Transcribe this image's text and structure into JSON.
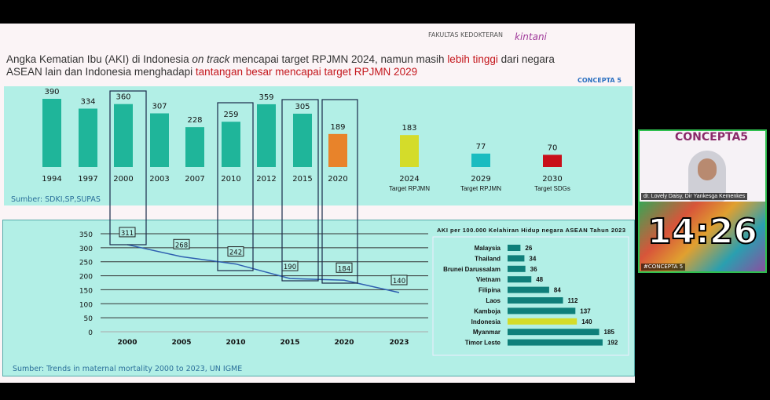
{
  "slide": {
    "title_parts": [
      "Angka Kematian Ibu (AKI) di Indonesia ",
      "on track",
      " mencapai target RPJMN 2024, namun masih ",
      "lebih tinggi",
      " dari negara ASEAN lain dan Indonesia menghadapi ",
      "tantangan besar mencapai target RPJMN 2029"
    ],
    "logos": [
      "FAKULTAS KEDOKTERAN",
      "kintani",
      "CONCEPTA 5"
    ]
  },
  "chart_data": [
    {
      "type": "bar",
      "categories": [
        "1994",
        "1997",
        "2000",
        "2003",
        "2007",
        "2010",
        "2012",
        "2015",
        "2020",
        "2024",
        "2029",
        "2030"
      ],
      "values": [
        390,
        334,
        360,
        307,
        228,
        259,
        359,
        305,
        189,
        183,
        77,
        70
      ],
      "sublabels": [
        "",
        "",
        "",
        "",
        "",
        "",
        "",
        "",
        "",
        "Target RPJMN",
        "Target RPJMN",
        "Target SDGs"
      ],
      "colors": [
        "#1fb59a",
        "#1fb59a",
        "#1fb59a",
        "#1fb59a",
        "#1fb59a",
        "#1fb59a",
        "#1fb59a",
        "#1fb59a",
        "#e8832a",
        "#d4dc2a",
        "#19bcc0",
        "#c8101a"
      ],
      "highlighted": [
        "2000",
        "2010",
        "2015",
        "2020"
      ],
      "source": "Sumber: SDKI,SP,SUPAS"
    },
    {
      "type": "line",
      "x": [
        "2000",
        "2005",
        "2010",
        "2015",
        "2020",
        "2023"
      ],
      "values": [
        311,
        268,
        242,
        190,
        184,
        140
      ],
      "yticks": [
        0,
        50,
        100,
        150,
        200,
        250,
        300,
        350
      ],
      "ylim": [
        0,
        350
      ],
      "grid": true,
      "color": "#2f5fb0",
      "source": "Sumber: Trends in maternal mortality 2000 to 2023, UN IGME"
    },
    {
      "type": "bar",
      "orientation": "horizontal",
      "title": "AKI per 100.000 Kelahiran Hidup negara ASEAN Tahun 2023",
      "categories": [
        "Malaysia",
        "Thailand",
        "Brunei Darussalam",
        "Vietnam",
        "Filipina",
        "Laos",
        "Kamboja",
        "Indonesia",
        "Myanmar",
        "Timor Leste"
      ],
      "values": [
        26,
        34,
        36,
        48,
        84,
        112,
        137,
        140,
        185,
        192
      ],
      "color": "#0f7f7a",
      "highlight_color": "#d4dc2a",
      "highlight": "Indonesia"
    }
  ],
  "webcam": {
    "title": "CONCEPTA5",
    "speaker": "dr. Lovely Daisy, Dir Yankesga Kemenkes",
    "timer": "14:26",
    "tag": "#CONCEPTA 5"
  }
}
